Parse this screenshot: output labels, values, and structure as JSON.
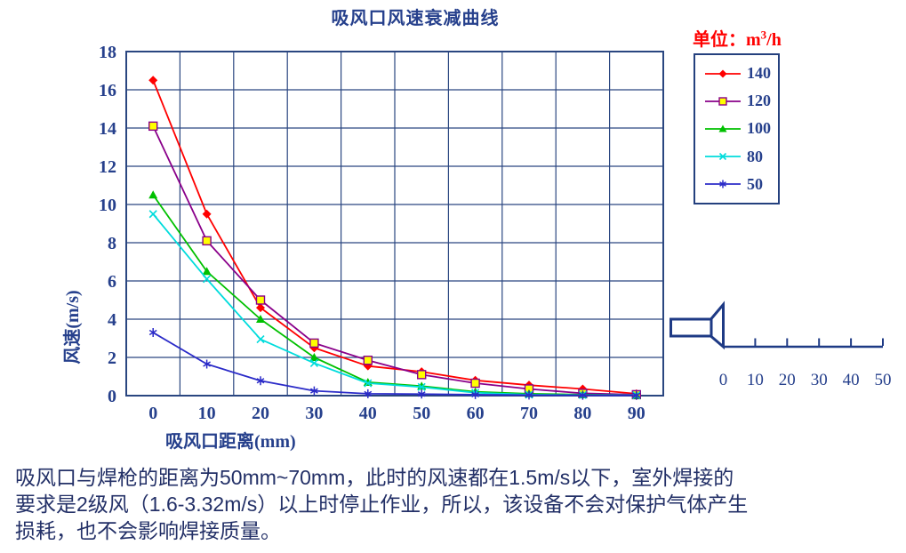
{
  "chart_data": {
    "type": "line",
    "title": "吸风口风速衰减曲线",
    "xlabel": "吸风口距离(mm)",
    "ylabel": "风速(m/s)",
    "categories": [
      0,
      10,
      20,
      30,
      40,
      50,
      60,
      70,
      80,
      90
    ],
    "ylim": [
      0,
      18
    ],
    "ytick_step": 2,
    "yticks": [
      0,
      2,
      4,
      6,
      8,
      10,
      12,
      14,
      16,
      18
    ],
    "grid": true,
    "legend_position": "right",
    "legend_title": "单位：",
    "unit": {
      "base": "m",
      "sup": "3",
      "rest": "/h"
    },
    "series": [
      {
        "name": "140",
        "marker": "diamond",
        "line_color": "#FF0000",
        "marker_color": "#FF0000",
        "values": [
          16.5,
          9.5,
          4.6,
          2.5,
          1.55,
          1.25,
          0.8,
          0.55,
          0.35,
          0.1
        ]
      },
      {
        "name": "120",
        "marker": "square",
        "line_color": "#8A008A",
        "marker_color": "#8A008A",
        "marker_fill": "#FFFF00",
        "values": [
          14.1,
          8.1,
          5.0,
          2.75,
          1.85,
          1.1,
          0.65,
          0.35,
          0.12,
          0.05
        ]
      },
      {
        "name": "100",
        "marker": "triangle",
        "line_color": "#00C000",
        "marker_color": "#00C000",
        "values": [
          10.5,
          6.5,
          4.0,
          2.0,
          0.7,
          0.5,
          0.2,
          0.1,
          0.05,
          0.02
        ]
      },
      {
        "name": "80",
        "marker": "x",
        "line_color": "#00DCDC",
        "marker_color": "#00DCDC",
        "values": [
          9.5,
          6.1,
          2.95,
          1.7,
          0.65,
          0.45,
          0.15,
          0.05,
          0.03,
          0.02
        ]
      },
      {
        "name": "50",
        "marker": "asterisk",
        "line_color": "#2B2BC8",
        "marker_color": "#2B2BC8",
        "values": [
          3.3,
          1.65,
          0.78,
          0.25,
          0.1,
          0.08,
          0.05,
          0.03,
          0.02,
          0.01
        ]
      }
    ]
  },
  "ruler": {
    "labels": [
      "0",
      "10",
      "20",
      "30",
      "40",
      "50"
    ]
  },
  "colors": {
    "grid_navy": "#2A4680",
    "text_navy": "#26408C",
    "diagram_navy": "#1E3A85",
    "unit_red": "#FF0000",
    "paragraph_text": "#233067"
  },
  "paragraph": {
    "lines": [
      "吸风口与焊枪的距离为50mm~70mm，此时的风速都在1.5m/s以下，室外焊接的",
      "要求是2级风（1.6-3.32m/s）以上时停止作业，所以，该设备不会对保护气体产生",
      "损耗，也不会影响焊接质量。"
    ]
  }
}
